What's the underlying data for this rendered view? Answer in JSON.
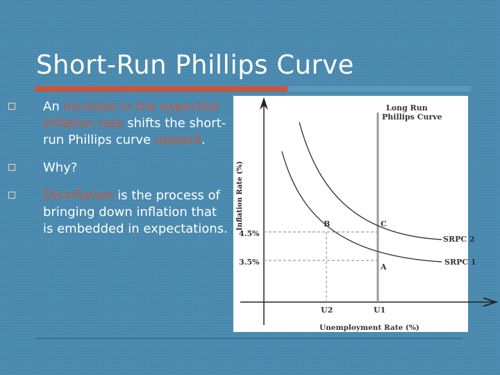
{
  "slide": {
    "title": "Short-Run Phillips Curve",
    "bullets": [
      {
        "segments": [
          {
            "text": "An ",
            "highlight": false
          },
          {
            "text": "increase in the expected inflation rate",
            "highlight": true
          },
          {
            "text": " shifts the short-run Phillips curve ",
            "highlight": false
          },
          {
            "text": "upward",
            "highlight": true
          },
          {
            "text": ".",
            "highlight": false
          }
        ]
      },
      {
        "segments": [
          {
            "text": "Why?",
            "highlight": false
          }
        ]
      },
      {
        "segments": [
          {
            "text": "Disinflation",
            "highlight": true
          },
          {
            "text": " is the process of bringing down inflation that is embedded in expectations.",
            "highlight": false
          }
        ]
      }
    ]
  },
  "diagram": {
    "y_axis_label": "Inflation Rate (%)",
    "x_axis_label": "Unemployment Rate (%)",
    "lrpc_label_line1": "Long Run",
    "lrpc_label_line2": "Phillips Curve",
    "y_ticks": [
      "4.5%",
      "3.5%"
    ],
    "x_ticks": [
      "U2",
      "U1"
    ],
    "points": [
      "B",
      "C",
      "A"
    ],
    "curves": [
      "SRPC 2",
      "SRPC 1"
    ]
  },
  "colors": {
    "background": "#4a8ab0",
    "accent": "#c8553d",
    "text": "#ffffff",
    "bullet_box": "#f2d9b0"
  }
}
